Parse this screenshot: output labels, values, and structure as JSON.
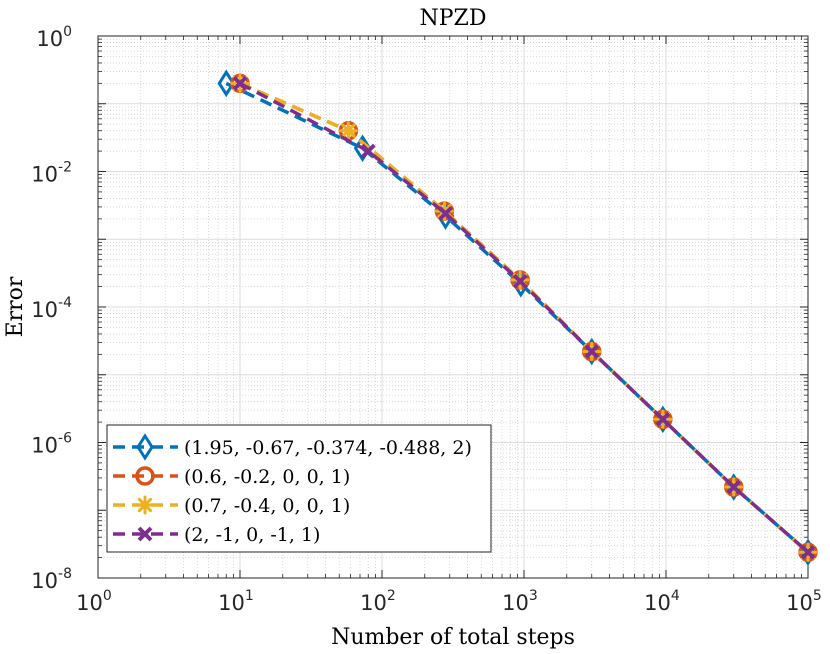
{
  "chart_data": {
    "type": "line",
    "title": "NPZD",
    "xlabel": "Number of total steps",
    "ylabel": "Error",
    "xscale": "log",
    "yscale": "log",
    "xlim": [
      1,
      100000
    ],
    "ylim": [
      1e-08,
      1
    ],
    "x_ticks": [
      {
        "value": 1,
        "base": "10",
        "exp": "0"
      },
      {
        "value": 10,
        "base": "10",
        "exp": "1"
      },
      {
        "value": 100,
        "base": "10",
        "exp": "2"
      },
      {
        "value": 1000,
        "base": "10",
        "exp": "3"
      },
      {
        "value": 10000,
        "base": "10",
        "exp": "4"
      },
      {
        "value": 100000,
        "base": "10",
        "exp": "5"
      }
    ],
    "y_ticks": [
      {
        "value": 1,
        "base": "10",
        "exp": "0"
      },
      {
        "value": 0.01,
        "base": "10",
        "exp": "-2"
      },
      {
        "value": 0.0001,
        "base": "10",
        "exp": "-4"
      },
      {
        "value": 1e-06,
        "base": "10",
        "exp": "-6"
      },
      {
        "value": 1e-08,
        "base": "10",
        "exp": "-8"
      }
    ],
    "grid": true,
    "legend_position": "bottom-left",
    "series": [
      {
        "name": "(1.95, -0.67, -0.374, -0.488, 2)",
        "color": "#0072BD",
        "marker": "diamond",
        "x": [
          8,
          73,
          280,
          950,
          3000,
          9500,
          30000,
          100000
        ],
        "y": [
          0.2,
          0.022,
          0.0022,
          0.00022,
          2.2e-05,
          2.2e-06,
          2.2e-07,
          2.4e-08
        ]
      },
      {
        "name": "(0.6, -0.2, 0, 0, 1)",
        "color": "#D95319",
        "marker": "circle",
        "x": [
          10,
          58,
          275,
          940,
          3000,
          9500,
          30000,
          100000
        ],
        "y": [
          0.2,
          0.04,
          0.0026,
          0.00025,
          2.2e-05,
          2.2e-06,
          2.2e-07,
          2.4e-08
        ]
      },
      {
        "name": "(0.7, -0.4, 0, 0, 1)",
        "color": "#EDB120",
        "marker": "star",
        "x": [
          10,
          58,
          275,
          940,
          3000,
          9500,
          30000,
          100000
        ],
        "y": [
          0.2,
          0.04,
          0.0026,
          0.00025,
          2.2e-05,
          2.2e-06,
          2.2e-07,
          2.4e-08
        ]
      },
      {
        "name": "(2, -1, 0, -1, 1)",
        "color": "#7E2F8E",
        "marker": "x",
        "x": [
          10,
          80,
          280,
          940,
          3000,
          9500,
          30000,
          100000
        ],
        "y": [
          0.2,
          0.02,
          0.0024,
          0.00024,
          2.2e-05,
          2.2e-06,
          2.2e-07,
          2.4e-08
        ]
      }
    ]
  }
}
